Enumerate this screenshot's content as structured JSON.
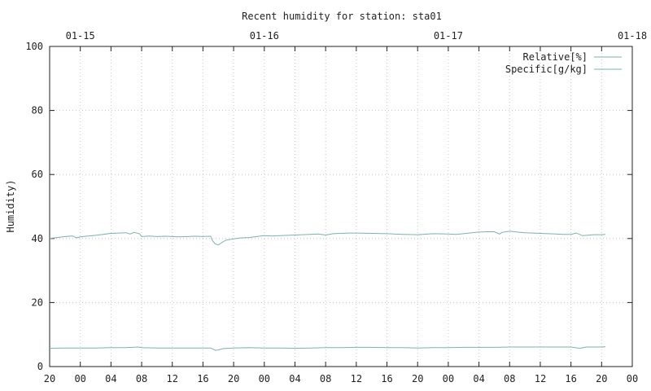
{
  "chart_data": {
    "type": "line",
    "title": "Recent humidity for station: sta01",
    "ylabel": "Humidity)",
    "ylim": [
      0,
      100
    ],
    "yticks": [
      0,
      20,
      40,
      60,
      80,
      100
    ],
    "xlim": [
      0,
      76
    ],
    "x_unit": "hours since 01-14 20:00",
    "bottom_ticks": [
      {
        "x": 0,
        "label": "20"
      },
      {
        "x": 4,
        "label": "00"
      },
      {
        "x": 8,
        "label": "04"
      },
      {
        "x": 12,
        "label": "08"
      },
      {
        "x": 16,
        "label": "12"
      },
      {
        "x": 20,
        "label": "16"
      },
      {
        "x": 24,
        "label": "20"
      },
      {
        "x": 28,
        "label": "00"
      },
      {
        "x": 32,
        "label": "04"
      },
      {
        "x": 36,
        "label": "08"
      },
      {
        "x": 40,
        "label": "12"
      },
      {
        "x": 44,
        "label": "16"
      },
      {
        "x": 48,
        "label": "20"
      },
      {
        "x": 52,
        "label": "00"
      },
      {
        "x": 56,
        "label": "04"
      },
      {
        "x": 60,
        "label": "08"
      },
      {
        "x": 64,
        "label": "12"
      },
      {
        "x": 68,
        "label": "16"
      },
      {
        "x": 72,
        "label": "20"
      },
      {
        "x": 76,
        "label": "00"
      }
    ],
    "top_ticks": [
      {
        "x": 4,
        "label": "01-15"
      },
      {
        "x": 28,
        "label": "01-16"
      },
      {
        "x": 52,
        "label": "01-17"
      },
      {
        "x": 76,
        "label": "01-18"
      }
    ],
    "grid": true,
    "legend": "top-right",
    "series": [
      {
        "name": "Relative[%]",
        "color": "#7ab3ad",
        "points": [
          [
            0,
            40.0
          ],
          [
            1,
            40.3
          ],
          [
            2,
            40.6
          ],
          [
            3,
            40.8
          ],
          [
            3.5,
            40.2
          ],
          [
            4,
            40.5
          ],
          [
            5,
            40.8
          ],
          [
            6,
            41.0
          ],
          [
            7,
            41.3
          ],
          [
            8,
            41.6
          ],
          [
            9,
            41.7
          ],
          [
            10,
            41.8
          ],
          [
            10.5,
            41.4
          ],
          [
            11,
            41.9
          ],
          [
            11.7,
            41.5
          ],
          [
            12,
            40.6
          ],
          [
            13,
            40.8
          ],
          [
            14,
            40.6
          ],
          [
            15,
            40.7
          ],
          [
            16,
            40.6
          ],
          [
            17,
            40.5
          ],
          [
            18,
            40.6
          ],
          [
            19,
            40.7
          ],
          [
            20,
            40.6
          ],
          [
            21,
            40.7
          ],
          [
            21.2,
            39.5
          ],
          [
            21.6,
            38.3
          ],
          [
            22,
            38.0
          ],
          [
            22.5,
            38.8
          ],
          [
            23,
            39.5
          ],
          [
            24,
            39.9
          ],
          [
            25,
            40.2
          ],
          [
            26,
            40.3
          ],
          [
            27,
            40.6
          ],
          [
            28,
            40.9
          ],
          [
            29,
            40.8
          ],
          [
            30,
            40.9
          ],
          [
            31,
            41.0
          ],
          [
            32,
            41.1
          ],
          [
            33,
            41.2
          ],
          [
            34,
            41.3
          ],
          [
            35,
            41.4
          ],
          [
            36,
            41.1
          ],
          [
            37,
            41.5
          ],
          [
            38,
            41.6
          ],
          [
            39,
            41.7
          ],
          [
            40,
            41.7
          ],
          [
            42,
            41.6
          ],
          [
            44,
            41.5
          ],
          [
            46,
            41.3
          ],
          [
            48,
            41.2
          ],
          [
            50,
            41.5
          ],
          [
            52,
            41.4
          ],
          [
            53,
            41.3
          ],
          [
            54,
            41.5
          ],
          [
            55,
            41.8
          ],
          [
            56,
            42.0
          ],
          [
            57,
            42.1
          ],
          [
            58,
            42.1
          ],
          [
            58.7,
            41.4
          ],
          [
            59,
            41.9
          ],
          [
            60,
            42.3
          ],
          [
            61,
            42.0
          ],
          [
            62,
            41.8
          ],
          [
            63,
            41.7
          ],
          [
            64,
            41.6
          ],
          [
            65,
            41.5
          ],
          [
            66,
            41.4
          ],
          [
            67,
            41.3
          ],
          [
            68,
            41.3
          ],
          [
            68.7,
            41.7
          ],
          [
            69.5,
            40.9
          ],
          [
            70,
            41.0
          ],
          [
            71,
            41.2
          ],
          [
            72,
            41.2
          ],
          [
            72.5,
            41.3
          ]
        ]
      },
      {
        "name": "Specific[g/kg]",
        "color": "#7ab3ad",
        "points": [
          [
            0,
            5.7
          ],
          [
            2,
            5.8
          ],
          [
            4,
            5.8
          ],
          [
            6,
            5.8
          ],
          [
            8,
            5.9
          ],
          [
            10,
            5.9
          ],
          [
            11.5,
            6.1
          ],
          [
            12,
            5.9
          ],
          [
            14,
            5.8
          ],
          [
            16,
            5.8
          ],
          [
            18,
            5.8
          ],
          [
            20,
            5.8
          ],
          [
            21,
            5.8
          ],
          [
            21.6,
            5.1
          ],
          [
            22,
            5.2
          ],
          [
            22.6,
            5.6
          ],
          [
            24,
            5.8
          ],
          [
            26,
            5.9
          ],
          [
            28,
            5.8
          ],
          [
            30,
            5.8
          ],
          [
            32,
            5.7
          ],
          [
            34,
            5.8
          ],
          [
            36,
            5.9
          ],
          [
            38,
            5.9
          ],
          [
            40,
            6.0
          ],
          [
            42,
            6.0
          ],
          [
            44,
            5.9
          ],
          [
            46,
            5.9
          ],
          [
            48,
            5.8
          ],
          [
            50,
            5.9
          ],
          [
            52,
            5.9
          ],
          [
            54,
            6.0
          ],
          [
            56,
            6.0
          ],
          [
            58,
            6.0
          ],
          [
            60,
            6.1
          ],
          [
            62,
            6.1
          ],
          [
            64,
            6.1
          ],
          [
            66,
            6.1
          ],
          [
            68,
            6.1
          ],
          [
            69.2,
            5.7
          ],
          [
            69.8,
            6.0
          ],
          [
            70,
            6.1
          ],
          [
            72,
            6.1
          ],
          [
            72.5,
            6.2
          ]
        ]
      }
    ]
  }
}
